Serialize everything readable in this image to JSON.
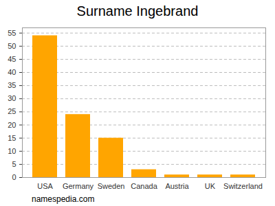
{
  "chart_data": {
    "type": "bar",
    "title": "Surname Ingebrand",
    "caption": "namespedia.com",
    "categories": [
      "USA",
      "Germany",
      "Sweden",
      "Canada",
      "Austria",
      "UK",
      "Switzerland"
    ],
    "values": [
      54,
      24,
      15,
      3,
      1,
      1,
      1
    ],
    "color": "#ffa500",
    "ylim": [
      0,
      57
    ],
    "yticks": [
      0,
      5,
      10,
      15,
      20,
      25,
      30,
      35,
      40,
      45,
      50,
      55
    ],
    "grid": true
  }
}
